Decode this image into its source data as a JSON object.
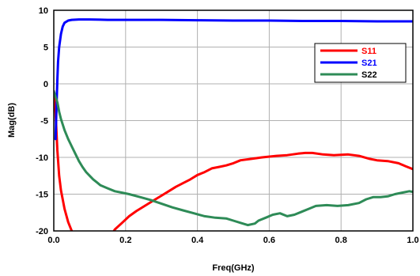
{
  "chart_data": {
    "type": "line",
    "xlabel": "Freq(GHz)",
    "ylabel": "Mag(dB)",
    "xlim": [
      0.0,
      1.0
    ],
    "ylim": [
      -20,
      10
    ],
    "x_ticks": [
      "0.0",
      "0.2",
      "0.4",
      "0.6",
      "0.8",
      "1.0"
    ],
    "y_ticks": [
      "10",
      "5",
      "0",
      "-5",
      "-10",
      "-15",
      "-20"
    ],
    "grid": true,
    "legend_position": "top-right",
    "series": [
      {
        "name": "S11",
        "color": "#ff0000",
        "points": [
          [
            0.0,
            -1.0
          ],
          [
            0.005,
            -4.0
          ],
          [
            0.01,
            -9.0
          ],
          [
            0.015,
            -12.5
          ],
          [
            0.02,
            -14.5
          ],
          [
            0.03,
            -17.0
          ],
          [
            0.04,
            -18.8
          ],
          [
            0.05,
            -20.0
          ],
          [
            0.055,
            -20.6
          ],
          [
            0.16,
            -20.6
          ],
          [
            0.17,
            -19.8
          ],
          [
            0.19,
            -18.9
          ],
          [
            0.21,
            -18.0
          ],
          [
            0.23,
            -17.3
          ],
          [
            0.26,
            -16.4
          ],
          [
            0.28,
            -15.8
          ],
          [
            0.3,
            -15.2
          ],
          [
            0.32,
            -14.6
          ],
          [
            0.34,
            -14.0
          ],
          [
            0.36,
            -13.5
          ],
          [
            0.38,
            -13.0
          ],
          [
            0.4,
            -12.4
          ],
          [
            0.42,
            -12.0
          ],
          [
            0.44,
            -11.5
          ],
          [
            0.46,
            -11.3
          ],
          [
            0.48,
            -11.1
          ],
          [
            0.5,
            -10.8
          ],
          [
            0.52,
            -10.4
          ],
          [
            0.55,
            -10.2
          ],
          [
            0.58,
            -10.0
          ],
          [
            0.62,
            -9.8
          ],
          [
            0.65,
            -9.7
          ],
          [
            0.68,
            -9.5
          ],
          [
            0.7,
            -9.4
          ],
          [
            0.72,
            -9.4
          ],
          [
            0.75,
            -9.6
          ],
          [
            0.78,
            -9.7
          ],
          [
            0.82,
            -9.6
          ],
          [
            0.85,
            -9.8
          ],
          [
            0.88,
            -10.2
          ],
          [
            0.9,
            -10.4
          ],
          [
            0.93,
            -10.5
          ],
          [
            0.96,
            -10.8
          ],
          [
            0.98,
            -11.2
          ],
          [
            1.0,
            -11.6
          ]
        ]
      },
      {
        "name": "S21",
        "color": "#0000ff",
        "points": [
          [
            0.005,
            -7.5
          ],
          [
            0.007,
            -4.0
          ],
          [
            0.01,
            0.5
          ],
          [
            0.012,
            3.0
          ],
          [
            0.015,
            5.0
          ],
          [
            0.02,
            6.8
          ],
          [
            0.025,
            7.8
          ],
          [
            0.03,
            8.3
          ],
          [
            0.04,
            8.6
          ],
          [
            0.05,
            8.7
          ],
          [
            0.07,
            8.75
          ],
          [
            0.1,
            8.75
          ],
          [
            0.15,
            8.7
          ],
          [
            0.2,
            8.7
          ],
          [
            0.3,
            8.7
          ],
          [
            0.4,
            8.65
          ],
          [
            0.5,
            8.6
          ],
          [
            0.6,
            8.6
          ],
          [
            0.7,
            8.55
          ],
          [
            0.8,
            8.55
          ],
          [
            0.9,
            8.5
          ],
          [
            1.0,
            8.5
          ]
        ]
      },
      {
        "name": "S22",
        "color": "#2e8b57",
        "points": [
          [
            0.0,
            -1.0
          ],
          [
            0.01,
            -2.5
          ],
          [
            0.015,
            -3.8
          ],
          [
            0.02,
            -4.8
          ],
          [
            0.03,
            -6.3
          ],
          [
            0.04,
            -7.5
          ],
          [
            0.05,
            -8.5
          ],
          [
            0.06,
            -9.5
          ],
          [
            0.07,
            -10.5
          ],
          [
            0.08,
            -11.3
          ],
          [
            0.09,
            -12.0
          ],
          [
            0.1,
            -12.5
          ],
          [
            0.11,
            -13.0
          ],
          [
            0.12,
            -13.4
          ],
          [
            0.13,
            -13.8
          ],
          [
            0.15,
            -14.2
          ],
          [
            0.17,
            -14.6
          ],
          [
            0.19,
            -14.8
          ],
          [
            0.21,
            -15.0
          ],
          [
            0.24,
            -15.4
          ],
          [
            0.27,
            -15.8
          ],
          [
            0.3,
            -16.3
          ],
          [
            0.33,
            -16.8
          ],
          [
            0.36,
            -17.2
          ],
          [
            0.39,
            -17.6
          ],
          [
            0.42,
            -18.0
          ],
          [
            0.45,
            -18.2
          ],
          [
            0.48,
            -18.3
          ],
          [
            0.5,
            -18.6
          ],
          [
            0.52,
            -18.9
          ],
          [
            0.54,
            -19.2
          ],
          [
            0.56,
            -19.0
          ],
          [
            0.57,
            -18.6
          ],
          [
            0.59,
            -18.2
          ],
          [
            0.61,
            -17.8
          ],
          [
            0.63,
            -17.6
          ],
          [
            0.65,
            -18.0
          ],
          [
            0.67,
            -17.8
          ],
          [
            0.69,
            -17.4
          ],
          [
            0.71,
            -17.0
          ],
          [
            0.73,
            -16.6
          ],
          [
            0.76,
            -16.5
          ],
          [
            0.79,
            -16.6
          ],
          [
            0.82,
            -16.5
          ],
          [
            0.85,
            -16.2
          ],
          [
            0.87,
            -15.7
          ],
          [
            0.89,
            -15.4
          ],
          [
            0.91,
            -15.4
          ],
          [
            0.93,
            -15.3
          ],
          [
            0.95,
            -15.0
          ],
          [
            0.97,
            -14.8
          ],
          [
            0.99,
            -14.6
          ],
          [
            1.0,
            -14.7
          ]
        ]
      }
    ]
  }
}
